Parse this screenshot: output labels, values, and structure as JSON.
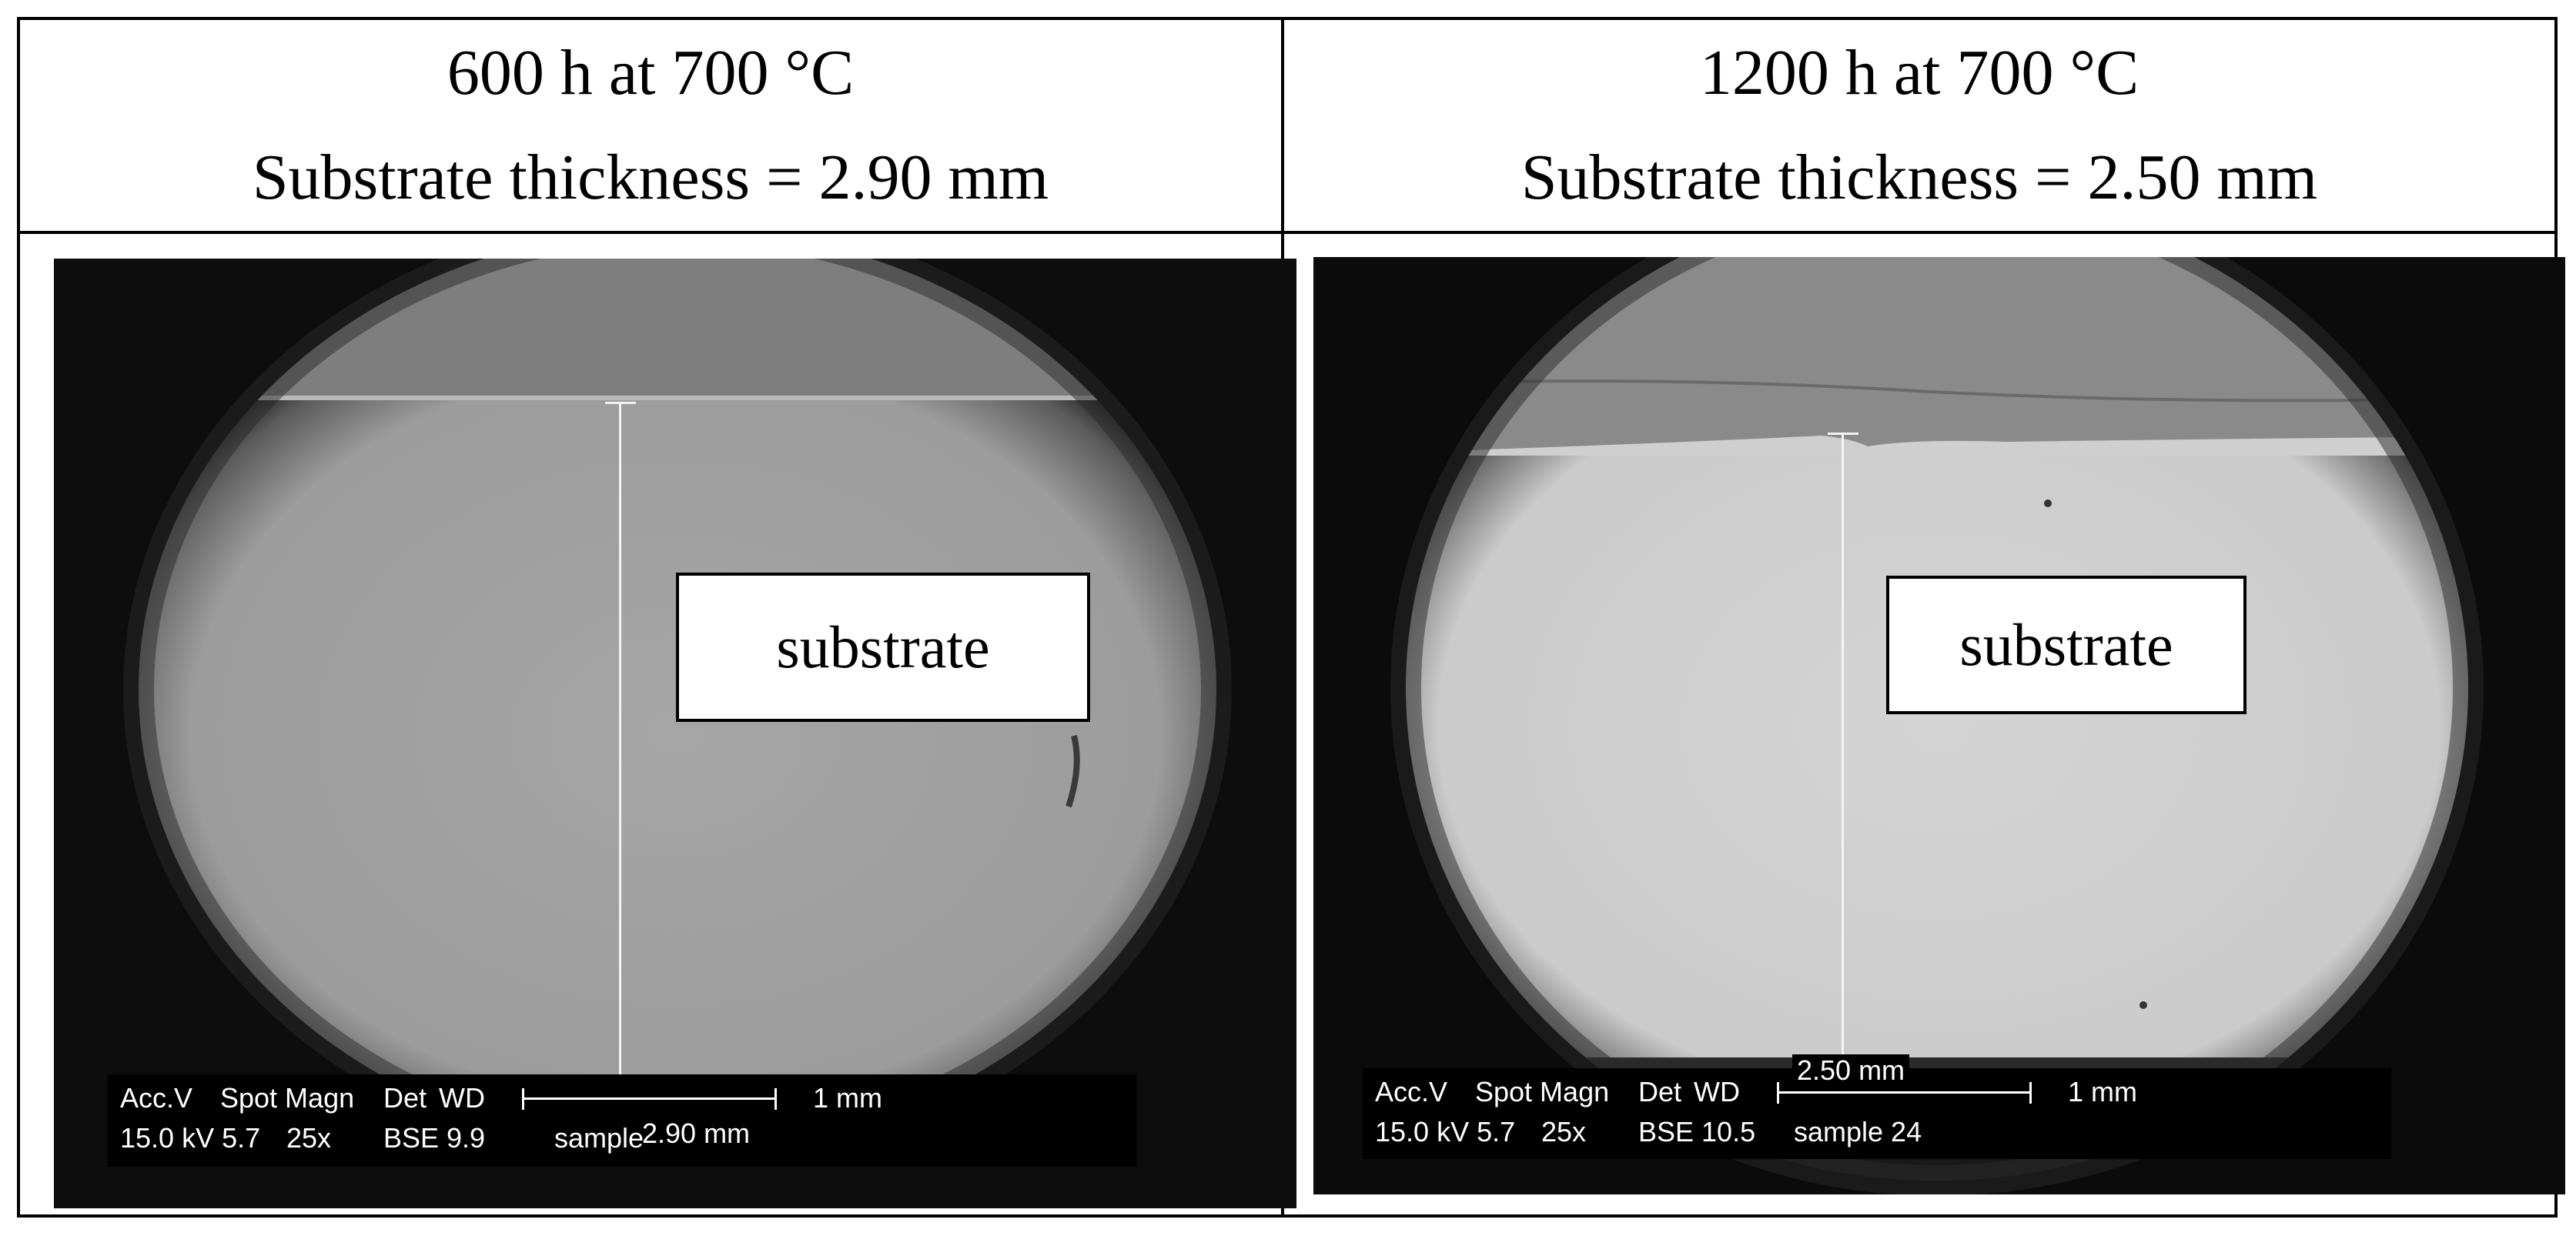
{
  "panels": [
    {
      "title_line1": "600 h at 700 °C",
      "title_line2": "Substrate thickness = 2.90 mm",
      "region_label": "substrate",
      "measure_label": "2.90 mm",
      "databar": {
        "row1": [
          "Acc.V",
          "Spot Magn",
          "Det",
          "WD",
          "1 mm"
        ],
        "row2": [
          "15.0 kV 5.7",
          "25x",
          "BSE 9.9",
          "sample"
        ]
      }
    },
    {
      "title_line1": "1200 h at 700 °C",
      "title_line2": "Substrate thickness = 2.50 mm",
      "region_label": "substrate",
      "measure_label": "2.50 mm",
      "databar": {
        "row1": [
          "Acc.V",
          "Spot Magn",
          "Det",
          "WD",
          "1 mm"
        ],
        "row2": [
          "15.0 kV 5.7",
          "25x",
          "BSE 10.5",
          "sample 24"
        ]
      }
    }
  ],
  "colors": {
    "border": "#000000",
    "sem_background": "#111111",
    "substrate_left": "#9e9e9e",
    "substrate_right": "#cfcfcf",
    "coating": "#7c7c7c"
  }
}
